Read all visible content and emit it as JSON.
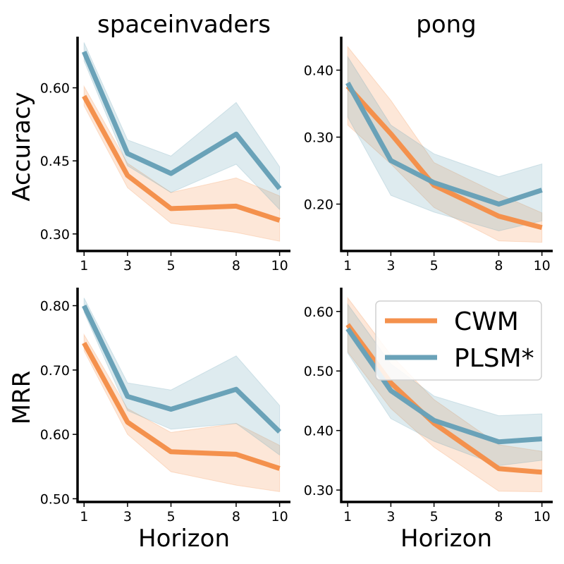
{
  "colors": {
    "cwm": "#f4914d",
    "plsm": "#6aa2b8",
    "axis": "#000000"
  },
  "legend": {
    "placement": "upper-right",
    "panel": "bottom-right",
    "entries": [
      {
        "key": "cwm",
        "label": "CWM"
      },
      {
        "key": "plsm",
        "label": "PLSM*"
      }
    ]
  },
  "chart_data": [
    {
      "type": "line",
      "title": "spaceinvaders",
      "xlabel": "",
      "ylabel": "Accuracy",
      "x": [
        1,
        3,
        5,
        8,
        10
      ],
      "xticks": [
        "1",
        "3",
        "5",
        "8",
        "10"
      ],
      "xlim": [
        0.7,
        10.5
      ],
      "ylim": [
        0.265,
        0.705
      ],
      "yticks": [
        0.3,
        0.45,
        0.6
      ],
      "ytick_labels": [
        "0.30",
        "0.45",
        "0.60"
      ],
      "series": [
        {
          "name": "CWM",
          "values": [
            0.583,
            0.42,
            0.352,
            0.357,
            0.328
          ],
          "lower": [
            0.563,
            0.395,
            0.322,
            0.303,
            0.285
          ],
          "upper": [
            0.603,
            0.445,
            0.385,
            0.415,
            0.378
          ]
        },
        {
          "name": "PLSM*",
          "values": [
            0.674,
            0.465,
            0.424,
            0.505,
            0.393
          ],
          "lower": [
            0.655,
            0.44,
            0.385,
            0.443,
            0.35
          ],
          "upper": [
            0.693,
            0.493,
            0.46,
            0.57,
            0.438
          ]
        }
      ]
    },
    {
      "type": "line",
      "title": "pong",
      "xlabel": "",
      "ylabel": "",
      "x": [
        1,
        3,
        5,
        8,
        10
      ],
      "xticks": [
        "1",
        "3",
        "5",
        "8",
        "10"
      ],
      "xlim": [
        0.7,
        10.5
      ],
      "ylim": [
        0.13,
        0.45
      ],
      "yticks": [
        0.2,
        0.3,
        0.4
      ],
      "ytick_labels": [
        "0.20",
        "0.30",
        "0.40"
      ],
      "series": [
        {
          "name": "CWM",
          "values": [
            0.376,
            0.305,
            0.228,
            0.182,
            0.165
          ],
          "lower": [
            0.318,
            0.26,
            0.195,
            0.145,
            0.143
          ],
          "upper": [
            0.435,
            0.355,
            0.262,
            0.215,
            0.187
          ]
        },
        {
          "name": "PLSM*",
          "values": [
            0.381,
            0.265,
            0.232,
            0.2,
            0.221
          ],
          "lower": [
            0.33,
            0.213,
            0.188,
            0.16,
            0.175
          ],
          "upper": [
            0.42,
            0.318,
            0.275,
            0.241,
            0.26
          ]
        }
      ]
    },
    {
      "type": "line",
      "title": "",
      "xlabel": "Horizon",
      "ylabel": "MRR",
      "x": [
        1,
        3,
        5,
        8,
        10
      ],
      "xticks": [
        "1",
        "3",
        "5",
        "8",
        "10"
      ],
      "xlim": [
        0.7,
        10.5
      ],
      "ylim": [
        0.495,
        0.828
      ],
      "yticks": [
        0.5,
        0.6,
        0.7,
        0.8
      ],
      "ytick_labels": [
        "0.50",
        "0.60",
        "0.70",
        "0.80"
      ],
      "series": [
        {
          "name": "CWM",
          "values": [
            0.742,
            0.619,
            0.573,
            0.569,
            0.547
          ],
          "lower": [
            0.73,
            0.6,
            0.542,
            0.521,
            0.511
          ],
          "upper": [
            0.755,
            0.64,
            0.603,
            0.617,
            0.583
          ]
        },
        {
          "name": "PLSM*",
          "values": [
            0.8,
            0.659,
            0.639,
            0.67,
            0.604
          ],
          "lower": [
            0.79,
            0.637,
            0.608,
            0.617,
            0.568
          ],
          "upper": [
            0.812,
            0.68,
            0.669,
            0.722,
            0.645
          ]
        }
      ]
    },
    {
      "type": "line",
      "title": "",
      "xlabel": "Horizon",
      "ylabel": "",
      "x": [
        1,
        3,
        5,
        8,
        10
      ],
      "xticks": [
        "1",
        "3",
        "5",
        "8",
        "10"
      ],
      "xlim": [
        0.7,
        10.5
      ],
      "ylim": [
        0.28,
        0.64
      ],
      "yticks": [
        0.3,
        0.4,
        0.5,
        0.6
      ],
      "ytick_labels": [
        "0.30",
        "0.40",
        "0.50",
        "0.60"
      ],
      "series": [
        {
          "name": "CWM",
          "values": [
            0.578,
            0.48,
            0.412,
            0.336,
            0.33
          ],
          "lower": [
            0.532,
            0.437,
            0.372,
            0.298,
            0.297
          ],
          "upper": [
            0.623,
            0.527,
            0.452,
            0.376,
            0.365
          ]
        },
        {
          "name": "PLSM*",
          "values": [
            0.571,
            0.467,
            0.417,
            0.381,
            0.386
          ],
          "lower": [
            0.53,
            0.42,
            0.382,
            0.341,
            0.35
          ],
          "upper": [
            0.612,
            0.512,
            0.458,
            0.425,
            0.428
          ]
        }
      ]
    }
  ]
}
